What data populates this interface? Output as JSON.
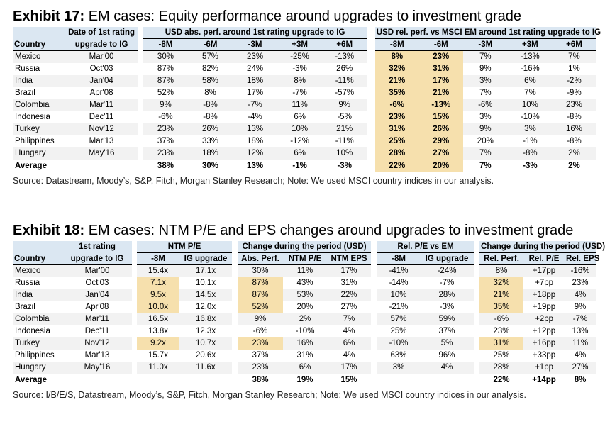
{
  "ex17": {
    "label": "Exhibit 17:",
    "title": "EM cases: Equity performance around upgrades to investment grade",
    "head": {
      "date_l1": "Date of 1st rating",
      "date_l2": "upgrade to IG",
      "country": "Country",
      "abs_group": "USD abs. perf. around 1st rating upgrade to IG",
      "rel_group": "USD rel. perf. vs MSCI EM around 1st rating upgrade to IG",
      "cols": [
        "-8M",
        "-6M",
        "-3M",
        "+3M",
        "+6M",
        "-8M",
        "-6M",
        "-3M",
        "+3M",
        "+6M"
      ]
    },
    "rows": [
      {
        "country": "Mexico",
        "date": "Mar'00",
        "v": [
          "30%",
          "57%",
          "23%",
          "-25%",
          "-13%",
          "8%",
          "23%",
          "7%",
          "-13%",
          "7%"
        ]
      },
      {
        "country": "Russia",
        "date": "Oct'03",
        "v": [
          "87%",
          "82%",
          "24%",
          "-3%",
          "26%",
          "32%",
          "31%",
          "9%",
          "-16%",
          "1%"
        ]
      },
      {
        "country": "India",
        "date": "Jan'04",
        "v": [
          "87%",
          "58%",
          "18%",
          "8%",
          "-11%",
          "21%",
          "17%",
          "3%",
          "6%",
          "-2%"
        ]
      },
      {
        "country": "Brazil",
        "date": "Apr'08",
        "v": [
          "52%",
          "8%",
          "17%",
          "-7%",
          "-57%",
          "35%",
          "21%",
          "7%",
          "7%",
          "-9%"
        ]
      },
      {
        "country": "Colombia",
        "date": "Mar'11",
        "v": [
          "9%",
          "-8%",
          "-7%",
          "11%",
          "9%",
          "-6%",
          "-13%",
          "-6%",
          "10%",
          "23%"
        ]
      },
      {
        "country": "Indonesia",
        "date": "Dec'11",
        "v": [
          "-6%",
          "-8%",
          "-4%",
          "6%",
          "-5%",
          "23%",
          "15%",
          "3%",
          "-10%",
          "-8%"
        ]
      },
      {
        "country": "Turkey",
        "date": "Nov'12",
        "v": [
          "23%",
          "26%",
          "13%",
          "10%",
          "21%",
          "31%",
          "26%",
          "9%",
          "3%",
          "16%"
        ]
      },
      {
        "country": "Philippines",
        "date": "Mar'13",
        "v": [
          "37%",
          "33%",
          "18%",
          "-12%",
          "-11%",
          "25%",
          "29%",
          "20%",
          "-1%",
          "-8%"
        ]
      },
      {
        "country": "Hungary",
        "date": "May'16",
        "v": [
          "23%",
          "18%",
          "12%",
          "6%",
          "10%",
          "28%",
          "27%",
          "7%",
          "-8%",
          "2%"
        ]
      }
    ],
    "avg": {
      "label": "Average",
      "v": [
        "38%",
        "30%",
        "13%",
        "-1%",
        "-3%",
        "22%",
        "20%",
        "7%",
        "-3%",
        "2%"
      ]
    },
    "source": "Source: Datastream, Moody’s, S&P, Fitch, Morgan Stanley Research; Note: We used MSCI country indices in our analysis."
  },
  "ex18": {
    "label": "Exhibit 18:",
    "title": "EM cases: NTM P/E and EPS changes around upgrades to investment grade",
    "head": {
      "date_l1": "1st rating",
      "date_l2": "upgrade to IG",
      "country": "Country",
      "g_ntm": "NTM P/E",
      "g_change": "Change during the period (USD)",
      "g_rel": "Rel. P/E vs EM",
      "g_change2": "Change during the period (USD)",
      "cols": [
        "-8M",
        "IG upgrade",
        "Abs. Perf.",
        "NTM P/E",
        "NTM EPS",
        "-8M",
        "IG upgrade",
        "Rel. Perf.",
        "Rel. P/E",
        "Rel. EPS"
      ]
    },
    "rows": [
      {
        "country": "Mexico",
        "date": "Mar'00",
        "v": [
          "15.4x",
          "17.1x",
          "30%",
          "11%",
          "17%",
          "-41%",
          "-24%",
          "8%",
          "+17pp",
          "-16%"
        ]
      },
      {
        "country": "Russia",
        "date": "Oct'03",
        "v": [
          "7.1x",
          "10.1x",
          "87%",
          "43%",
          "31%",
          "-14%",
          "-7%",
          "32%",
          "+7pp",
          "23%"
        ]
      },
      {
        "country": "India",
        "date": "Jan'04",
        "v": [
          "9.5x",
          "14.5x",
          "87%",
          "53%",
          "22%",
          "10%",
          "28%",
          "21%",
          "+18pp",
          "4%"
        ]
      },
      {
        "country": "Brazil",
        "date": "Apr'08",
        "v": [
          "10.0x",
          "12.0x",
          "52%",
          "20%",
          "27%",
          "-21%",
          "-3%",
          "35%",
          "+19pp",
          "9%"
        ]
      },
      {
        "country": "Colombia",
        "date": "Mar'11",
        "v": [
          "16.5x",
          "16.8x",
          "9%",
          "2%",
          "7%",
          "57%",
          "59%",
          "-6%",
          "+2pp",
          "-7%"
        ]
      },
      {
        "country": "Indonesia",
        "date": "Dec'11",
        "v": [
          "13.8x",
          "12.3x",
          "-6%",
          "-10%",
          "4%",
          "25%",
          "37%",
          "23%",
          "+12pp",
          "13%"
        ]
      },
      {
        "country": "Turkey",
        "date": "Nov'12",
        "v": [
          "9.2x",
          "10.7x",
          "23%",
          "16%",
          "6%",
          "-10%",
          "5%",
          "31%",
          "+16pp",
          "11%"
        ]
      },
      {
        "country": "Philippines",
        "date": "Mar'13",
        "v": [
          "15.7x",
          "20.6x",
          "37%",
          "31%",
          "4%",
          "63%",
          "96%",
          "25%",
          "+33pp",
          "4%"
        ]
      },
      {
        "country": "Hungary",
        "date": "May'16",
        "v": [
          "11.0x",
          "11.6x",
          "23%",
          "6%",
          "17%",
          "3%",
          "4%",
          "28%",
          "+1pp",
          "27%"
        ]
      }
    ],
    "avg": {
      "label": "Average",
      "v": [
        "",
        "",
        "38%",
        "19%",
        "15%",
        "",
        "",
        "22%",
        "+14pp",
        "8%"
      ]
    },
    "source": "Source: I/B/E/S, Datastream, Moody’s, S&P, Fitch, Morgan Stanley Research; Note: We used MSCI country indices in our analysis."
  }
}
